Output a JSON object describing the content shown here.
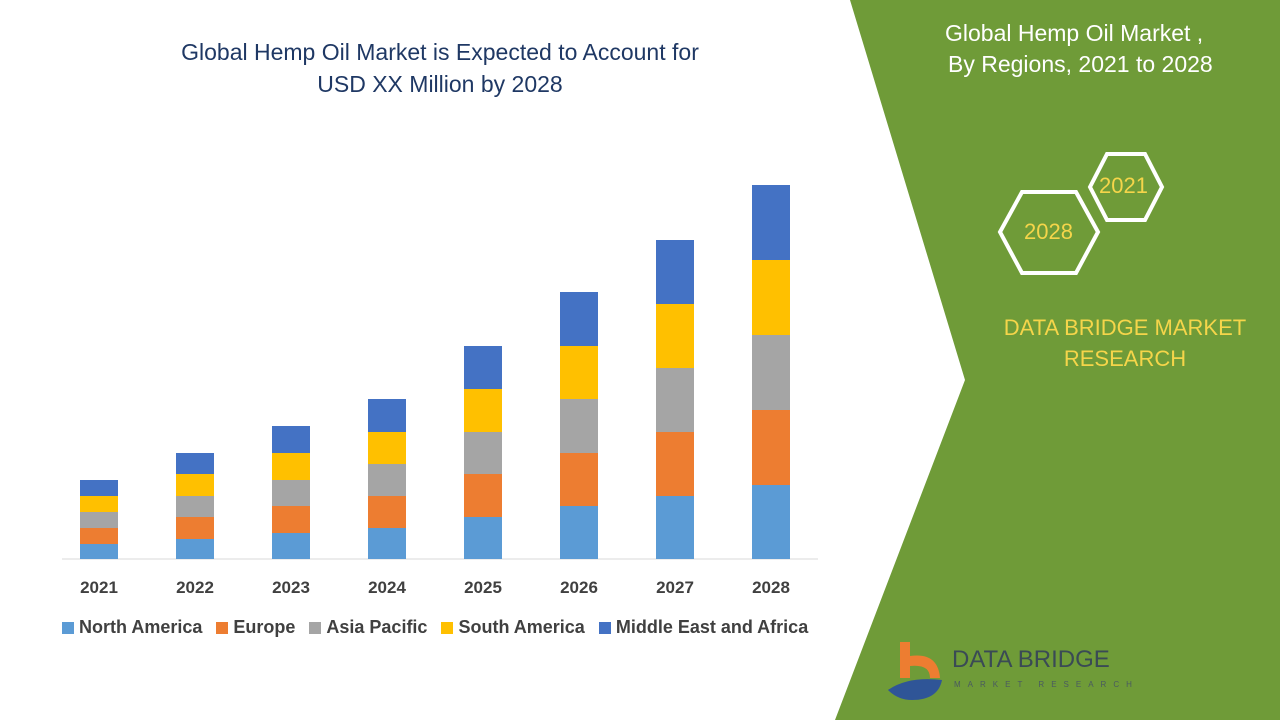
{
  "chart_data": {
    "type": "bar",
    "stacked": true,
    "title": "Global Hemp Oil Market is Expected to Account for USD XX Million by 2028",
    "categories": [
      "2021",
      "2022",
      "2023",
      "2024",
      "2025",
      "2026",
      "2027",
      "2028"
    ],
    "series": [
      {
        "name": "North America",
        "color": "#5b9bd5",
        "values": [
          15,
          20,
          26,
          31,
          42,
          53,
          63,
          74
        ]
      },
      {
        "name": "Europe",
        "color": "#ed7d31",
        "values": [
          16,
          22,
          27,
          32,
          43,
          53,
          64,
          75
        ]
      },
      {
        "name": "Asia Pacific",
        "color": "#a5a5a5",
        "values": [
          16,
          21,
          26,
          32,
          42,
          54,
          64,
          75
        ]
      },
      {
        "name": "South America",
        "color": "#ffc000",
        "values": [
          16,
          22,
          27,
          32,
          43,
          53,
          64,
          75
        ]
      },
      {
        "name": "Middle East and Africa",
        "color": "#4472c4",
        "values": [
          16,
          21,
          27,
          33,
          43,
          54,
          64,
          75
        ]
      }
    ],
    "xlabel": "",
    "ylabel": "",
    "legend": "bottom",
    "grid": false
  },
  "panel": {
    "title_line1": "Global Hemp Oil Market ,",
    "title_line2": "By Regions, 2021 to 2028",
    "hex_start": "2021",
    "hex_end": "2028",
    "brand_line1": "DATA BRIDGE MARKET",
    "brand_line2": "RESEARCH",
    "accent": "#6f9b38",
    "brand_color": "#f5d54a"
  },
  "logo": {
    "name": "DATA BRIDGE",
    "sub": "MARKET RESEARCH"
  },
  "title_line1": "Global Hemp Oil Market is Expected to Account for",
  "title_line2": "USD XX Million by 2028"
}
